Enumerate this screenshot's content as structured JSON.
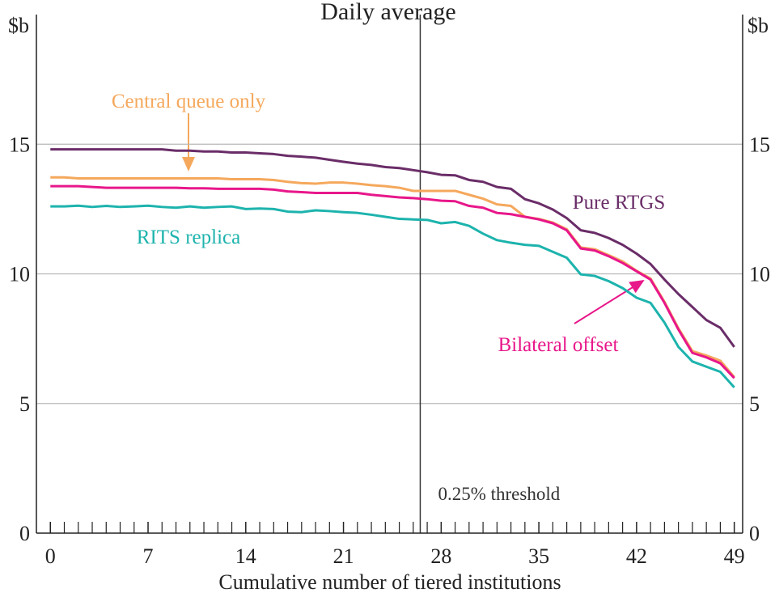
{
  "chart_data": {
    "type": "line",
    "title": "Daily average",
    "x_label": "Cumulative number of tiered institutions",
    "y_label": "$b",
    "y2_label": "$b",
    "x": [
      0,
      1,
      2,
      3,
      4,
      5,
      6,
      7,
      8,
      9,
      10,
      11,
      12,
      13,
      14,
      15,
      16,
      17,
      18,
      19,
      20,
      21,
      22,
      23,
      24,
      25,
      26,
      27,
      28,
      29,
      30,
      31,
      32,
      33,
      34,
      35,
      36,
      37,
      38,
      39,
      40,
      41,
      42,
      43,
      44,
      45,
      46,
      47,
      48,
      49
    ],
    "series": [
      {
        "name": "Pure RTGS",
        "color": "#6a2d68",
        "values": [
          14.8,
          14.8,
          14.8,
          14.8,
          14.8,
          14.8,
          14.8,
          14.8,
          14.8,
          14.75,
          14.75,
          14.72,
          14.72,
          14.68,
          14.68,
          14.65,
          14.62,
          14.55,
          14.52,
          14.48,
          14.4,
          14.32,
          14.25,
          14.2,
          14.12,
          14.08,
          14.0,
          13.92,
          13.82,
          13.8,
          13.62,
          13.55,
          13.35,
          13.28,
          12.88,
          12.72,
          12.48,
          12.15,
          11.68,
          11.58,
          11.38,
          11.12,
          10.78,
          10.38,
          9.78,
          9.22,
          8.72,
          8.22,
          7.92,
          7.18
        ]
      },
      {
        "name": "Central queue only",
        "color": "#f5a85c",
        "values": [
          13.72,
          13.72,
          13.68,
          13.68,
          13.68,
          13.68,
          13.68,
          13.68,
          13.68,
          13.68,
          13.68,
          13.68,
          13.68,
          13.65,
          13.65,
          13.65,
          13.62,
          13.55,
          13.5,
          13.48,
          13.52,
          13.52,
          13.48,
          13.42,
          13.38,
          13.32,
          13.2,
          13.2,
          13.2,
          13.2,
          13.05,
          12.9,
          12.68,
          12.62,
          12.2,
          12.12,
          11.98,
          11.72,
          11.02,
          10.95,
          10.72,
          10.48,
          10.12,
          9.82,
          8.92,
          7.9,
          7.02,
          6.85,
          6.65,
          6.02
        ]
      },
      {
        "name": "Bilateral offset",
        "color": "#e8178a",
        "values": [
          13.38,
          13.38,
          13.38,
          13.35,
          13.32,
          13.32,
          13.32,
          13.32,
          13.32,
          13.32,
          13.3,
          13.3,
          13.28,
          13.28,
          13.28,
          13.28,
          13.25,
          13.18,
          13.15,
          13.12,
          13.12,
          13.12,
          13.12,
          13.05,
          13.0,
          12.95,
          12.92,
          12.88,
          12.82,
          12.8,
          12.62,
          12.55,
          12.35,
          12.3,
          12.2,
          12.1,
          11.95,
          11.68,
          10.98,
          10.9,
          10.68,
          10.42,
          10.1,
          9.78,
          8.88,
          7.85,
          6.95,
          6.78,
          6.55,
          5.98
        ]
      },
      {
        "name": "RITS replica",
        "color": "#1db3ad",
        "values": [
          12.6,
          12.6,
          12.63,
          12.58,
          12.62,
          12.58,
          12.6,
          12.63,
          12.58,
          12.55,
          12.6,
          12.55,
          12.58,
          12.6,
          12.5,
          12.52,
          12.5,
          12.4,
          12.38,
          12.45,
          12.42,
          12.38,
          12.35,
          12.28,
          12.2,
          12.12,
          12.1,
          12.08,
          11.95,
          12.0,
          11.85,
          11.55,
          11.3,
          11.2,
          11.12,
          11.08,
          10.85,
          10.62,
          9.98,
          9.92,
          9.72,
          9.45,
          9.08,
          8.88,
          8.12,
          7.18,
          6.62,
          6.42,
          6.22,
          5.62
        ]
      }
    ],
    "xlim": [
      -1,
      49.6
    ],
    "xticks": [
      0,
      7,
      14,
      21,
      28,
      35,
      42,
      49
    ],
    "xminorticks": [
      1,
      2,
      3,
      4,
      5,
      6,
      8,
      9,
      10,
      11,
      12,
      13,
      15,
      16,
      17,
      18,
      19,
      20,
      22,
      23,
      24,
      25,
      26,
      27,
      29,
      30,
      31,
      32,
      33,
      34,
      36,
      37,
      38,
      39,
      40,
      41,
      43,
      44,
      45,
      46,
      47,
      48
    ],
    "ylim": [
      0,
      20
    ],
    "yticks": [
      0,
      5,
      10,
      15
    ],
    "grid": true,
    "threshold": {
      "x": 26.5,
      "label": "0.25% threshold"
    }
  }
}
